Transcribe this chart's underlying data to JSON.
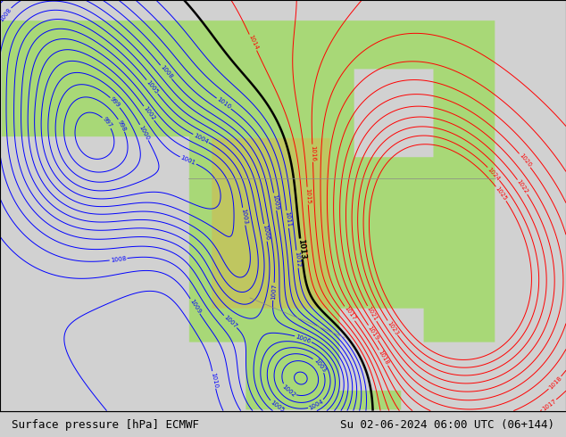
{
  "title_left": "Surface pressure [hPa] ECMWF",
  "title_right": "Su 02-06-2024 06:00 UTC (06+144)",
  "fig_width": 6.34,
  "fig_height": 4.9,
  "dpi": 100,
  "bottom_bar_color": "#f0f0f0",
  "bottom_text_color": "#000000",
  "contour_color_blue": "#0000ff",
  "contour_color_red": "#ff0000",
  "contour_color_black": "#000000",
  "land_color": [
    0.66,
    0.85,
    0.47
  ],
  "ocean_color": [
    0.82,
    0.82,
    0.82
  ],
  "mountain_color": [
    0.75,
    0.78,
    0.38
  ]
}
